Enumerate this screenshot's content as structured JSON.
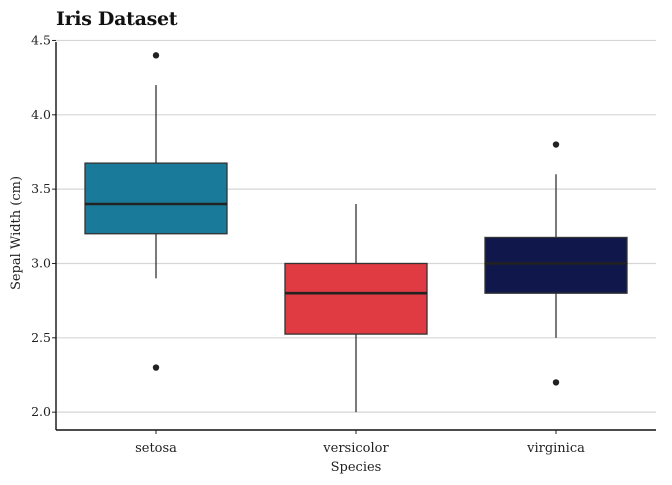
{
  "chart_data": {
    "type": "box",
    "title": "Iris Dataset",
    "xlabel": "Species",
    "ylabel": "Sepal Width (cm)",
    "ylim": [
      1.88,
      4.53
    ],
    "yticks": [
      "2.0",
      "2.5",
      "3.0",
      "3.5",
      "4.0",
      "4.5"
    ],
    "grid": "horizontal",
    "categories": [
      "setosa",
      "versicolor",
      "virginica"
    ],
    "boxes": [
      {
        "category": "setosa",
        "min": 2.9,
        "q1": 3.2,
        "median": 3.4,
        "q3": 3.675,
        "max": 4.2,
        "outliers": [
          4.4,
          2.3
        ],
        "color": "#1a7a99"
      },
      {
        "category": "versicolor",
        "min": 2.0,
        "q1": 2.525,
        "median": 2.8,
        "q3": 3.0,
        "max": 3.4,
        "outliers": [],
        "color": "#e03a43"
      },
      {
        "category": "virginica",
        "min": 2.5,
        "q1": 2.8,
        "median": 3.0,
        "q3": 3.175,
        "max": 3.6,
        "outliers": [
          3.8,
          2.2
        ],
        "color": "#10174a"
      }
    ]
  }
}
